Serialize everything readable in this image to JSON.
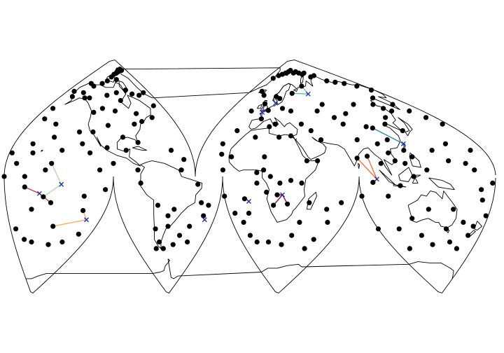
{
  "map": {
    "projection": "interrupted-goode-homolosine",
    "outline_color": "#000000",
    "station_color": "#000000",
    "center_marker_color": "#1f2fb0",
    "center_marker_symbol": "x"
  },
  "clusters": [
    {
      "color": "#5e4fa2",
      "center": [
        -2.0,
        49.0
      ],
      "members": [
        [
          -3.5,
          55.5
        ],
        [
          0.0,
          44.0
        ],
        [
          4.0,
          50.5
        ]
      ]
    },
    {
      "color": "#fee08b",
      "center": [
        10.0,
        56.0
      ],
      "members": [
        [
          14.0,
          59.5
        ],
        [
          8.0,
          61.0
        ]
      ]
    },
    {
      "color": "#66c2a5",
      "center": [
        58.0,
        63.0
      ],
      "members": [
        [
          32.0,
          63.5
        ],
        [
          52.0,
          69.0
        ]
      ]
    },
    {
      "color": "#3288bd",
      "center": [
        121.0,
        25.0
      ],
      "members": [
        [
          105.0,
          37.0
        ],
        [
          118.0,
          20.0
        ]
      ]
    },
    {
      "color": "#f46d43",
      "center": [
        93.0,
        -2.0
      ],
      "members": [
        [
          80.0,
          14.0
        ],
        [
          88.0,
          15.5
        ],
        [
          90.0,
          -4.5
        ]
      ]
    },
    {
      "color": "#9e0142",
      "center": [
        24.0,
        -14.0
      ],
      "members": [
        [
          20.0,
          -14.0
        ],
        [
          17.0,
          -22.0
        ],
        [
          28.0,
          -21.0
        ]
      ]
    },
    {
      "color": "#ffffbf",
      "center": [
        -2.0,
        -19.0
      ],
      "members": [
        [
          -5.0,
          -17.0
        ],
        [
          -3.5,
          -28.0
        ]
      ]
    },
    {
      "color": "#d53e4f",
      "center": [
        -154.0,
        -13.0
      ],
      "members": [
        [
          -165.0,
          -8.0
        ],
        [
          -145.0,
          -20.0
        ]
      ]
    },
    {
      "color": "#abdda4",
      "center": [
        -138.0,
        -6.0
      ],
      "members": [
        [
          -146.0,
          10.0
        ],
        [
          -151.0,
          -15.5
        ]
      ]
    },
    {
      "color": "#fdae61",
      "center": [
        -112.0,
        -33.0
      ],
      "members": [
        [
          -118.0,
          -26.0
        ],
        [
          -140.0,
          -38.0
        ]
      ]
    },
    {
      "color": "#fdae61",
      "center": [
        -28.0,
        -33.0
      ],
      "members": []
    }
  ],
  "stations": [
    [
      -115,
      73
    ],
    [
      -106,
      76
    ],
    [
      -98,
      78
    ],
    [
      -89,
      79
    ],
    [
      -80,
      80
    ],
    [
      -78,
      81
    ],
    [
      -72,
      81
    ],
    [
      -66,
      82
    ],
    [
      -62,
      81
    ],
    [
      -92,
      74
    ],
    [
      -125,
      71
    ],
    [
      -140,
      69
    ],
    [
      -150,
      71
    ],
    [
      -150,
      64
    ],
    [
      -162,
      61
    ],
    [
      -168,
      65
    ],
    [
      -135,
      60
    ],
    [
      -110,
      62
    ],
    [
      -95,
      64
    ],
    [
      -78,
      66
    ],
    [
      -70,
      63
    ],
    [
      -60,
      62
    ],
    [
      -50,
      64
    ],
    [
      -50,
      54
    ],
    [
      -90,
      58
    ],
    [
      -98,
      50
    ],
    [
      -113,
      52
    ],
    [
      -122,
      49
    ],
    [
      -142,
      60
    ],
    [
      -172,
      52
    ],
    [
      -170,
      44
    ],
    [
      -155,
      40
    ],
    [
      -150,
      30
    ],
    [
      -165,
      25
    ],
    [
      -178,
      18
    ],
    [
      -162,
      18
    ],
    [
      -172,
      10
    ],
    [
      -150,
      5
    ],
    [
      -165,
      0
    ],
    [
      -180,
      0
    ],
    [
      -160,
      -25
    ],
    [
      -120,
      -15
    ],
    [
      -105,
      -10
    ],
    [
      -112,
      -44
    ],
    [
      -125,
      -50
    ],
    [
      -140,
      -52
    ],
    [
      -175,
      -40
    ],
    [
      -168,
      -48
    ],
    [
      -160,
      -50
    ],
    [
      -80,
      40
    ],
    [
      -72,
      42
    ],
    [
      -75,
      48
    ],
    [
      -60,
      45
    ],
    [
      -105,
      39
    ],
    [
      -92,
      30
    ],
    [
      -80,
      26
    ],
    [
      -90,
      20
    ],
    [
      -105,
      22
    ],
    [
      -130,
      34
    ],
    [
      -118,
      34
    ],
    [
      -125,
      25
    ],
    [
      -140,
      20
    ],
    [
      -118,
      18
    ],
    [
      -100,
      10
    ],
    [
      -110,
      5
    ],
    [
      -55,
      20
    ],
    [
      -47,
      13
    ],
    [
      -50,
      5
    ],
    [
      -82,
      5
    ],
    [
      -80,
      -5
    ],
    [
      -38,
      -6
    ],
    [
      -34,
      -20
    ],
    [
      -28,
      -22
    ],
    [
      -55,
      -25
    ],
    [
      -60,
      -30
    ],
    [
      -68,
      -22
    ],
    [
      -60,
      -38
    ],
    [
      -72,
      -40
    ],
    [
      -66,
      -55
    ],
    [
      -75,
      -55
    ],
    [
      -40,
      -38
    ],
    [
      -30,
      -30
    ],
    [
      -48,
      -45
    ],
    [
      -54,
      -52
    ],
    [
      -38,
      -50
    ],
    [
      -70,
      -50
    ],
    [
      -20,
      75
    ],
    [
      -10,
      77
    ],
    [
      0,
      78
    ],
    [
      10,
      79
    ],
    [
      20,
      80
    ],
    [
      28,
      81
    ],
    [
      40,
      79
    ],
    [
      50,
      80
    ],
    [
      60,
      79
    ],
    [
      70,
      78
    ],
    [
      80,
      79
    ],
    [
      90,
      76
    ],
    [
      105,
      77
    ],
    [
      120,
      73
    ],
    [
      135,
      72
    ],
    [
      150,
      71
    ],
    [
      165,
      69
    ],
    [
      175,
      66
    ],
    [
      -20,
      65
    ],
    [
      -12,
      62
    ],
    [
      -15,
      50
    ],
    [
      -18,
      35
    ],
    [
      -25,
      25
    ],
    [
      -15,
      15
    ],
    [
      -23,
      17
    ],
    [
      -20,
      5
    ],
    [
      -20,
      -15
    ],
    [
      -15,
      -28
    ],
    [
      -10,
      -35
    ],
    [
      -8,
      -45
    ],
    [
      -3,
      -50
    ],
    [
      10,
      -50
    ],
    [
      25,
      -52
    ],
    [
      35,
      -45
    ],
    [
      60,
      -48
    ],
    [
      0,
      30
    ],
    [
      10,
      38
    ],
    [
      15,
      40
    ],
    [
      20,
      30
    ],
    [
      30,
      31
    ],
    [
      10,
      15
    ],
    [
      10,
      5
    ],
    [
      5,
      3
    ],
    [
      15,
      0
    ],
    [
      5,
      -5
    ],
    [
      12,
      -12
    ],
    [
      22,
      -5
    ],
    [
      30,
      -3
    ],
    [
      38,
      -5
    ],
    [
      42,
      12
    ],
    [
      50,
      12
    ],
    [
      55,
      28
    ],
    [
      48,
      35
    ],
    [
      40,
      40
    ],
    [
      30,
      50
    ],
    [
      20,
      52
    ],
    [
      60,
      50
    ],
    [
      70,
      55
    ],
    [
      75,
      45
    ],
    [
      90,
      48
    ],
    [
      110,
      55
    ],
    [
      128,
      45
    ],
    [
      135,
      55
    ],
    [
      140,
      52
    ],
    [
      145,
      50
    ],
    [
      150,
      60
    ],
    [
      160,
      55
    ],
    [
      165,
      50
    ],
    [
      170,
      45
    ],
    [
      175,
      40
    ],
    [
      130,
      35
    ],
    [
      120,
      40
    ],
    [
      100,
      38
    ],
    [
      80,
      40
    ],
    [
      85,
      28
    ],
    [
      100,
      25
    ],
    [
      110,
      28
    ],
    [
      105,
      18
    ],
    [
      97,
      10
    ],
    [
      108,
      12
    ],
    [
      115,
      10
    ],
    [
      122,
      15
    ],
    [
      140,
      20
    ],
    [
      155,
      25
    ],
    [
      170,
      20
    ],
    [
      160,
      10
    ],
    [
      148,
      12
    ],
    [
      130,
      5
    ],
    [
      120,
      0
    ],
    [
      110,
      -7
    ],
    [
      100,
      -15
    ],
    [
      80,
      -15
    ],
    [
      70,
      -20
    ],
    [
      60,
      -25
    ],
    [
      45,
      -20
    ],
    [
      40,
      -35
    ],
    [
      65,
      -35
    ],
    [
      80,
      -40
    ],
    [
      100,
      -40
    ],
    [
      115,
      -32
    ],
    [
      130,
      -25
    ],
    [
      150,
      -25
    ],
    [
      160,
      -35
    ],
    [
      168,
      -45
    ],
    [
      170,
      -38
    ],
    [
      178,
      -30
    ],
    [
      172,
      -18
    ],
    [
      145,
      -40
    ],
    [
      120,
      -45
    ],
    [
      130,
      -52
    ],
    [
      150,
      -50
    ],
    [
      160,
      -55
    ],
    [
      100,
      -55
    ],
    [
      55,
      -55
    ],
    [
      170,
      -10
    ],
    [
      178,
      -5
    ],
    [
      165,
      5
    ]
  ]
}
